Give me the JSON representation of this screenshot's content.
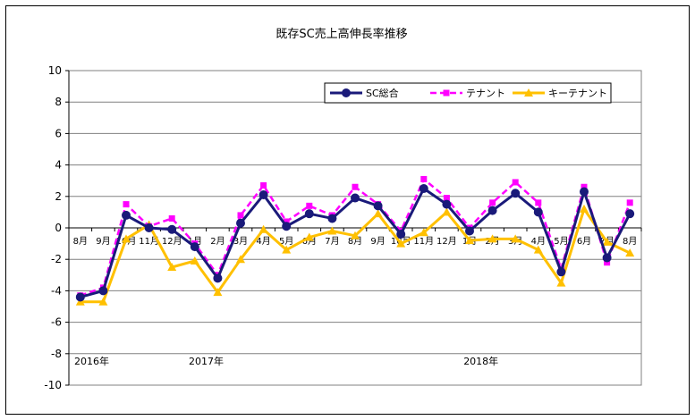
{
  "chart_data": {
    "type": "line",
    "title": "既存SC売上高伸長率推移",
    "xlabel": "",
    "ylabel": "",
    "ylim": [
      -10,
      10
    ],
    "ytick_step": 2,
    "grid": "horizontal",
    "legend_position": "top-right",
    "categories": [
      "8月",
      "9月",
      "10月",
      "11月",
      "12月",
      "1月",
      "2月",
      "3月",
      "4月",
      "5月",
      "6月",
      "7月",
      "8月",
      "9月",
      "10月",
      "11月",
      "12月",
      "1月",
      "2月",
      "3月",
      "4月",
      "5月",
      "6月",
      "7月",
      "8月"
    ],
    "year_labels": [
      {
        "label": "2016年",
        "index": 0
      },
      {
        "label": "2017年",
        "index": 5
      },
      {
        "label": "2018年",
        "index": 17
      }
    ],
    "series": [
      {
        "name": "SC総合",
        "color": "#1a1a7a",
        "marker": "circle",
        "dash": "solid",
        "values": [
          -4.4,
          -4.0,
          0.8,
          0.0,
          -0.1,
          -1.2,
          -3.2,
          0.3,
          2.1,
          0.1,
          0.9,
          0.6,
          1.9,
          1.4,
          -0.4,
          2.5,
          1.5,
          -0.2,
          1.1,
          2.2,
          1.0,
          -2.8,
          2.3,
          -1.9,
          0.9
        ]
      },
      {
        "name": "テナント",
        "color": "#ff00ff",
        "marker": "square",
        "dash": "dashed",
        "values": [
          -4.3,
          -3.8,
          1.5,
          0.1,
          0.6,
          -1.0,
          -3.0,
          0.8,
          2.7,
          0.4,
          1.4,
          0.8,
          2.6,
          1.5,
          -0.2,
          3.1,
          1.9,
          0.0,
          1.6,
          2.9,
          1.6,
          -2.6,
          2.6,
          -2.2,
          1.6
        ]
      },
      {
        "name": "キーテナント",
        "color": "#ffc000",
        "marker": "triangle",
        "dash": "solid",
        "values": [
          -4.7,
          -4.7,
          -0.7,
          0.2,
          -2.5,
          -2.1,
          -4.1,
          -2.0,
          -0.1,
          -1.4,
          -0.6,
          -0.2,
          -0.5,
          0.9,
          -1.0,
          -0.3,
          1.0,
          -0.8,
          -0.7,
          -0.7,
          -1.4,
          -3.5,
          1.2,
          -0.9,
          -1.6
        ]
      }
    ]
  }
}
